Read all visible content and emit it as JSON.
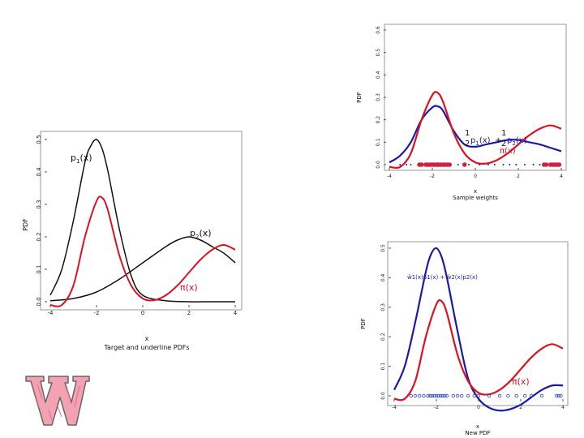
{
  "colors": {
    "black": "#111111",
    "red": "#dd1122",
    "blue": "#1a1aaa",
    "points": "#cc2244",
    "blue_points": "#3344bb"
  },
  "chart_data": [
    {
      "id": "left",
      "type": "line",
      "title": "Target and underline PDFs",
      "xlabel": "x",
      "ylabel": "PDF",
      "xlim": [
        -4,
        4
      ],
      "ylim": [
        0,
        0.5
      ],
      "x_ticks": [
        "-4",
        "-2",
        "0",
        "2",
        "4"
      ],
      "y_ticks": [
        "0.0",
        "0.1",
        "0.2",
        "0.3",
        "0.4",
        "0.5"
      ],
      "series": [
        {
          "name": "p1(x)",
          "color": "black",
          "x": [
            -4,
            -3.5,
            -3,
            -2.5,
            -2.25,
            -2,
            -1.75,
            -1.5,
            -1,
            -0.5,
            0,
            1,
            2,
            3,
            4
          ],
          "y": [
            0.02,
            0.1,
            0.25,
            0.43,
            0.48,
            0.5,
            0.47,
            0.4,
            0.22,
            0.08,
            0.02,
            0.003,
            0.0,
            0.0,
            0.0
          ]
        },
        {
          "name": "p2(x)",
          "color": "black",
          "x": [
            -4,
            -3,
            -2,
            -1,
            0,
            1,
            1.5,
            2,
            2.5,
            3,
            3.5,
            4
          ],
          "y": [
            0.003,
            0.01,
            0.03,
            0.07,
            0.12,
            0.17,
            0.19,
            0.2,
            0.19,
            0.17,
            0.15,
            0.12
          ]
        },
        {
          "name": "π(x)",
          "color": "red",
          "x": [
            -4,
            -3.5,
            -3,
            -2.5,
            -2,
            -1.75,
            -1.5,
            -1,
            -0.5,
            0,
            0.5,
            1,
            1.5,
            2,
            2.5,
            3,
            3.5,
            4
          ],
          "y": [
            -0.01,
            -0.01,
            0.05,
            0.2,
            0.31,
            0.32,
            0.28,
            0.14,
            0.05,
            0.01,
            0.005,
            0.02,
            0.05,
            0.09,
            0.13,
            0.16,
            0.175,
            0.16
          ]
        }
      ],
      "annotations": {
        "p1": "p",
        "p1_sub": "1",
        "p1_arg": "(x)",
        "p2": "p",
        "p2_sub": "2",
        "p2_arg": "(x)",
        "pi": "π(x)"
      }
    },
    {
      "id": "top-right",
      "type": "line",
      "title": "Sample weights",
      "xlabel": "x",
      "ylabel": "PDF",
      "xlim": [
        -4,
        4
      ],
      "ylim": [
        0,
        0.6
      ],
      "x_ticks": [
        "-4",
        "-2",
        "0",
        "2",
        "4"
      ],
      "y_ticks": [
        "0.0",
        "0.1",
        "0.2",
        "0.3",
        "0.4",
        "0.5",
        "0.6"
      ],
      "series": [
        {
          "name": "½p1(x) + ½p2(x)",
          "color": "blue",
          "x": [
            -4,
            -3.5,
            -3,
            -2.5,
            -2,
            -1.75,
            -1.5,
            -1,
            -0.5,
            0,
            0.5,
            1,
            1.5,
            2,
            2.5,
            3,
            3.5,
            4
          ],
          "y": [
            0.01,
            0.04,
            0.1,
            0.2,
            0.255,
            0.26,
            0.24,
            0.15,
            0.09,
            0.08,
            0.09,
            0.1,
            0.11,
            0.11,
            0.1,
            0.09,
            0.075,
            0.06
          ]
        },
        {
          "name": "π(x)",
          "color": "red",
          "x": [
            -4,
            -3.5,
            -3,
            -2.5,
            -2,
            -1.75,
            -1.5,
            -1,
            -0.5,
            0,
            0.5,
            1,
            1.5,
            2,
            2.5,
            3,
            3.5,
            4
          ],
          "y": [
            -0.01,
            -0.01,
            0.05,
            0.2,
            0.31,
            0.32,
            0.28,
            0.14,
            0.05,
            0.01,
            0.005,
            0.02,
            0.05,
            0.09,
            0.13,
            0.16,
            0.175,
            0.16
          ]
        }
      ],
      "sample_points_x": [
        -2.6,
        -2.5,
        -2.3,
        -2.2,
        -2.1,
        -2.0,
        -1.9,
        -1.8,
        -1.75,
        -1.7,
        -1.6,
        -1.5,
        -1.4,
        -1.3,
        -1.2,
        -0.5,
        3.2,
        3.3,
        3.5,
        3.6,
        3.7,
        3.8,
        3.9
      ],
      "small_points_x": [
        -3.5,
        -3.2,
        -3.0,
        -0.8,
        -0.3,
        0.2,
        0.6,
        0.9,
        1.3,
        1.6,
        1.9,
        2.3,
        2.7,
        3.0
      ],
      "annotations": {
        "frac_num": "1",
        "frac_den": "2",
        "p1": "p",
        "p1_sub": "1",
        "p1_arg": "(x)",
        "plus": "+",
        "p2": "p",
        "p2_sub": "2",
        "p2_arg": "(x)",
        "pi": "π(x)"
      }
    },
    {
      "id": "bottom-right",
      "type": "line",
      "title": "New PDF",
      "xlabel": "x",
      "ylabel": "PDF",
      "xlim": [
        -4,
        4
      ],
      "ylim": [
        0,
        0.5
      ],
      "x_ticks": [
        "-4",
        "-2",
        "0",
        "2",
        "4"
      ],
      "y_ticks": [
        "0.0",
        "0.1",
        "0.2",
        "0.3",
        "0.4",
        "0.5"
      ],
      "series": [
        {
          "name": "ŵ1(x)p1(x) + ŵ2(x)p2(x)",
          "color": "blue",
          "x": [
            -4,
            -3.5,
            -3,
            -2.5,
            -2.25,
            -2,
            -1.75,
            -1.5,
            -1,
            -0.5,
            0,
            0.5,
            1,
            1.5,
            2,
            2.5,
            3,
            3.5,
            4
          ],
          "y": [
            0.02,
            0.1,
            0.25,
            0.42,
            0.48,
            0.5,
            0.47,
            0.4,
            0.22,
            0.06,
            -0.01,
            -0.04,
            -0.05,
            -0.045,
            -0.03,
            -0.005,
            0.02,
            0.035,
            0.035
          ]
        },
        {
          "name": "π(x)",
          "color": "red",
          "x": [
            -4,
            -3.5,
            -3,
            -2.5,
            -2,
            -1.75,
            -1.5,
            -1,
            -0.5,
            0,
            0.5,
            1,
            1.5,
            2,
            2.5,
            3,
            3.5,
            4
          ],
          "y": [
            -0.01,
            -0.01,
            0.05,
            0.2,
            0.31,
            0.32,
            0.28,
            0.14,
            0.05,
            0.01,
            0.005,
            0.02,
            0.05,
            0.09,
            0.13,
            0.16,
            0.175,
            0.16
          ]
        }
      ],
      "sample_points_x": [
        -3.2,
        -3.0,
        -2.8,
        -2.6,
        -2.4,
        -2.3,
        -2.2,
        -2.1,
        -2.0,
        -1.9,
        -1.8,
        -1.7,
        -1.6,
        -1.5,
        -1.2,
        -1.0,
        -0.8,
        -0.5,
        -0.2,
        0.0,
        0.5,
        1.0,
        1.4,
        1.8,
        2.2,
        2.5,
        3.0,
        3.7,
        3.8,
        3.9
      ],
      "annotations": {
        "formula": "ŵ1(x)p1(x) + ŵ2(x)p2(x)",
        "pi": "π(x)"
      }
    }
  ]
}
